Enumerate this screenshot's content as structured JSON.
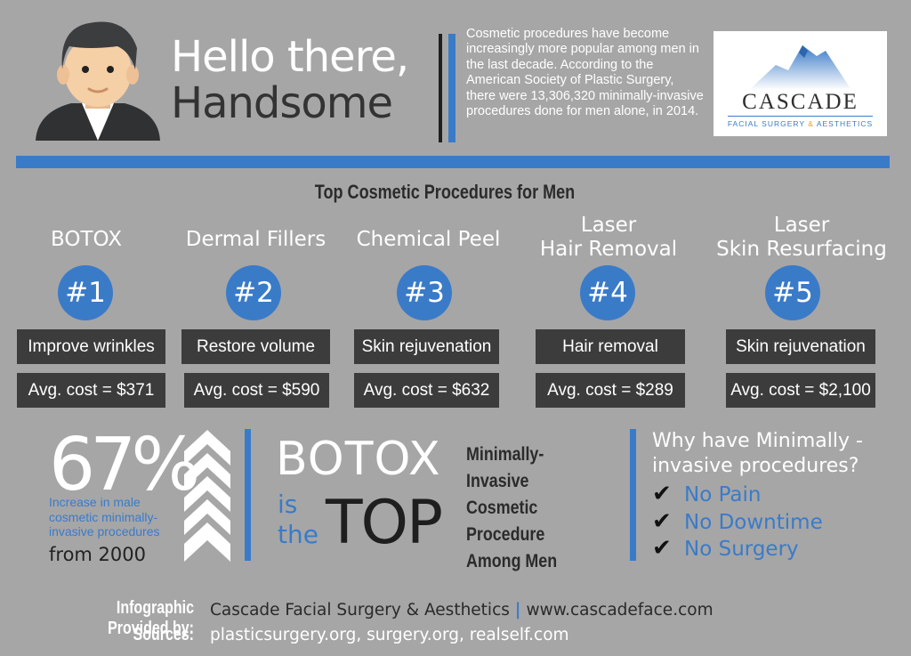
{
  "header": {
    "title_line1": "Hello there,",
    "title_line2": "Handsome",
    "intro": "Cosmetic procedures have become increasingly more popular among men in the last decade. According to the American Society of Plastic Surgery, there were 13,306,320 minimally-invasive procedures done for men alone, in 2014."
  },
  "logo": {
    "name": "CASCADE",
    "subtitle_a": "FACIAL SURGERY ",
    "subtitle_amp": "&",
    "subtitle_b": " AESTHETICS"
  },
  "section_title": "Top Cosmetic Procedures for Men",
  "procedures": [
    {
      "name_line1": "BOTOX",
      "name_line2": "",
      "rank": "#1",
      "benefit": "Improve wrinkles",
      "cost": "Avg. cost = $371"
    },
    {
      "name_line1": "Dermal Fillers",
      "name_line2": "",
      "rank": "#2",
      "benefit": "Restore volume",
      "cost": "Avg. cost = $590"
    },
    {
      "name_line1": "Chemical Peel",
      "name_line2": "",
      "rank": "#3",
      "benefit": "Skin rejuvenation",
      "cost": "Avg. cost = $632"
    },
    {
      "name_line1": "Laser",
      "name_line2": "Hair Removal",
      "rank": "#4",
      "benefit": "Hair removal",
      "cost": "Avg. cost = $289"
    },
    {
      "name_line1": "Laser",
      "name_line2": "Skin Resurfacing",
      "rank": "#5",
      "benefit": "Skin rejuvenation",
      "cost": "Avg. cost = $2,100"
    }
  ],
  "stat": {
    "percent": "67%",
    "description": "Increase in male cosmetic minimally-invasive procedures",
    "since": "from 2000"
  },
  "botox_top": {
    "botox": "BOTOX",
    "is": "is",
    "the": "the",
    "top": "TOP"
  },
  "minimally_invasive": "Minimally-Invasive Cosmetic Procedure Among Men",
  "why": {
    "title": "Why have Minimally - invasive procedures?",
    "reasons": [
      "No Pain",
      "No Downtime",
      "No Surgery"
    ]
  },
  "footer": {
    "provided_label": "Infographic Provided by:",
    "provided_name": "Cascade Facial Surgery & Aesthetics",
    "separator": "|",
    "provided_url": "www.cascadeface.com",
    "sources_label": "Sources:",
    "sources": "plasticsurgery.org, surgery.org, realself.com"
  },
  "icons": {
    "avatar": "man-avatar-icon",
    "logo_mountain": "mountain-icon",
    "chevrons": "chevron-up-icon",
    "check": "checkmark-icon"
  },
  "colors": {
    "background": "#a6a6a7",
    "accent_blue": "#3a7bc8",
    "dark_box": "#3c3c3c",
    "white": "#ffffff"
  }
}
